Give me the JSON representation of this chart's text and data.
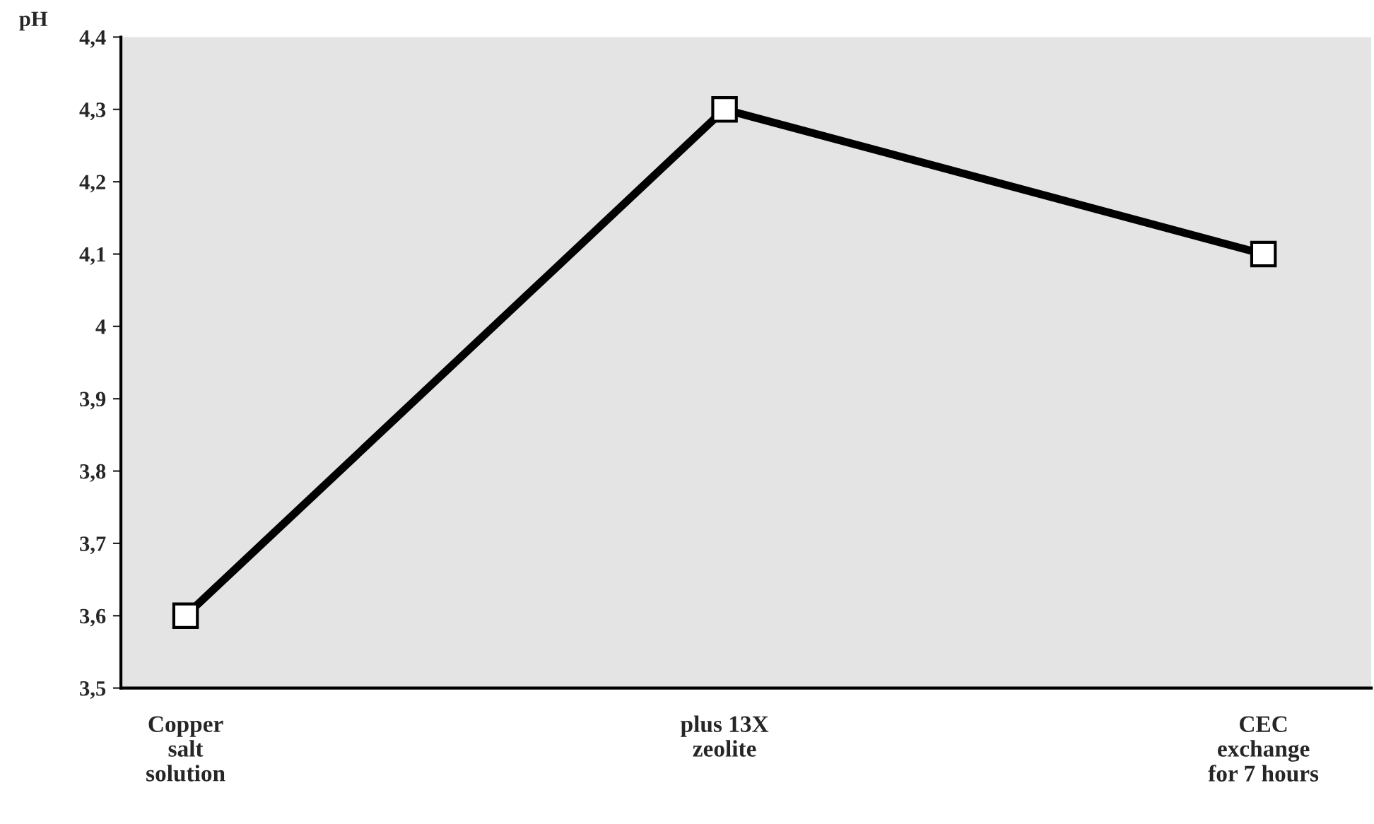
{
  "chart_data": {
    "type": "line",
    "ylabel": "pH",
    "categories": [
      "Copper\nsalt\nsolution",
      "plus 13X\nzeolite",
      "CEC\nexchange\nfor 7 hours"
    ],
    "series": [
      {
        "color": "#000000",
        "values": [
          3.6,
          4.3,
          4.1
        ]
      }
    ],
    "ylim": [
      3.5,
      4.4
    ],
    "yticks": [
      {
        "value": 3.5,
        "label": "3,5"
      },
      {
        "value": 3.6,
        "label": "3,6"
      },
      {
        "value": 3.7,
        "label": "3,7"
      },
      {
        "value": 3.8,
        "label": "3,8"
      },
      {
        "value": 3.9,
        "label": "3,9"
      },
      4,
      {
        "value": 4.1,
        "label": "4,1"
      },
      {
        "value": 4.2,
        "label": "4,2"
      },
      {
        "value": 4.3,
        "label": "4,3"
      },
      {
        "value": 4.4,
        "label": "4,4"
      }
    ],
    "marker": "square",
    "line_style": "solid",
    "grid": false,
    "legend": false
  }
}
